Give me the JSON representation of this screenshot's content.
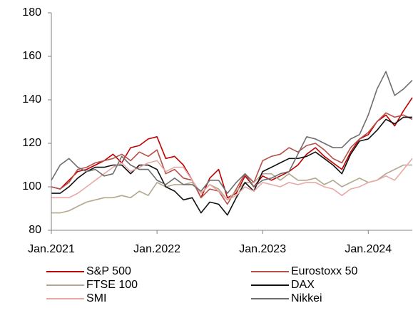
{
  "chart_data": {
    "type": "line",
    "x": [
      "2021-01",
      "2021-02",
      "2021-03",
      "2021-04",
      "2021-05",
      "2021-06",
      "2021-07",
      "2021-08",
      "2021-09",
      "2021-10",
      "2021-11",
      "2021-12",
      "2022-01",
      "2022-02",
      "2022-03",
      "2022-04",
      "2022-05",
      "2022-06",
      "2022-07",
      "2022-08",
      "2022-09",
      "2022-10",
      "2022-11",
      "2022-12",
      "2023-01",
      "2023-02",
      "2023-03",
      "2023-04",
      "2023-05",
      "2023-06",
      "2023-07",
      "2023-08",
      "2023-09",
      "2023-10",
      "2023-11",
      "2023-12",
      "2024-01",
      "2024-02",
      "2024-03",
      "2024-04",
      "2024-05",
      "2024-06"
    ],
    "series": [
      {
        "name": "S&P 500",
        "color": "#c00000",
        "values": [
          100,
          99,
          103,
          107,
          108,
          110,
          112,
          115,
          111,
          118,
          119,
          122,
          123,
          113,
          114,
          110,
          103,
          95,
          104,
          108,
          95,
          97,
          105,
          100,
          105,
          103,
          105,
          107,
          110,
          115,
          118,
          114,
          111,
          108,
          116,
          122,
          124,
          130,
          133,
          128,
          135,
          141
        ]
      },
      {
        "name": "Eurostoxx 50",
        "color": "#b5504a",
        "values": [
          100,
          99,
          102,
          108,
          109,
          111,
          112,
          113,
          115,
          112,
          116,
          114,
          117,
          106,
          108,
          104,
          103,
          95,
          99,
          98,
          92,
          99,
          106,
          102,
          112,
          114,
          115,
          118,
          116,
          119,
          120,
          117,
          113,
          111,
          118,
          122,
          125,
          130,
          134,
          132,
          133,
          131
        ]
      },
      {
        "name": "FTSE 100",
        "color": "#b3a88e",
        "values": [
          88,
          88,
          89,
          91,
          93,
          94,
          95,
          95,
          96,
          95,
          98,
          96,
          102,
          100,
          101,
          101,
          102,
          97,
          101,
          99,
          94,
          98,
          102,
          102,
          106,
          106,
          103,
          106,
          103,
          103,
          104,
          101,
          103,
          100,
          102,
          104,
          102,
          103,
          106,
          108,
          110,
          110
        ]
      },
      {
        "name": "DAX",
        "color": "#111111",
        "values": [
          97,
          97,
          100,
          104,
          107,
          109,
          109,
          110,
          110,
          106,
          110,
          110,
          108,
          100,
          98,
          94,
          95,
          88,
          93,
          92,
          87,
          95,
          102,
          98,
          107,
          109,
          111,
          113,
          113,
          114,
          116,
          113,
          110,
          106,
          115,
          121,
          122,
          126,
          131,
          129,
          132,
          132
        ]
      },
      {
        "name": "SMI",
        "color": "#e8a9a6",
        "values": [
          95,
          95,
          95,
          97,
          100,
          103,
          106,
          109,
          111,
          107,
          109,
          111,
          112,
          107,
          109,
          109,
          103,
          97,
          101,
          98,
          94,
          96,
          100,
          98,
          102,
          101,
          100,
          102,
          101,
          102,
          102,
          100,
          99,
          96,
          99,
          100,
          102,
          103,
          105,
          103,
          108,
          113
        ]
      },
      {
        "name": "Nikkei",
        "color": "#6e6e6e",
        "values": [
          103,
          110,
          113,
          109,
          107,
          108,
          105,
          106,
          114,
          110,
          108,
          108,
          103,
          101,
          104,
          101,
          101,
          98,
          103,
          103,
          97,
          102,
          106,
          100,
          103,
          104,
          106,
          107,
          115,
          123,
          122,
          120,
          118,
          118,
          122,
          124,
          133,
          145,
          153,
          142,
          145,
          149
        ]
      }
    ],
    "xlim": [
      "2021-01",
      "2024-06"
    ],
    "xticks": [
      {
        "value": "2021-01",
        "label": "Jan.2021"
      },
      {
        "value": "2022-01",
        "label": "Jan.2022"
      },
      {
        "value": "2023-01",
        "label": "Jan.2023"
      },
      {
        "value": "2024-01",
        "label": "Jan.2024"
      }
    ],
    "ylim": [
      80,
      180
    ],
    "yticks": [
      80,
      100,
      120,
      140,
      160,
      180
    ],
    "grid": false
  }
}
